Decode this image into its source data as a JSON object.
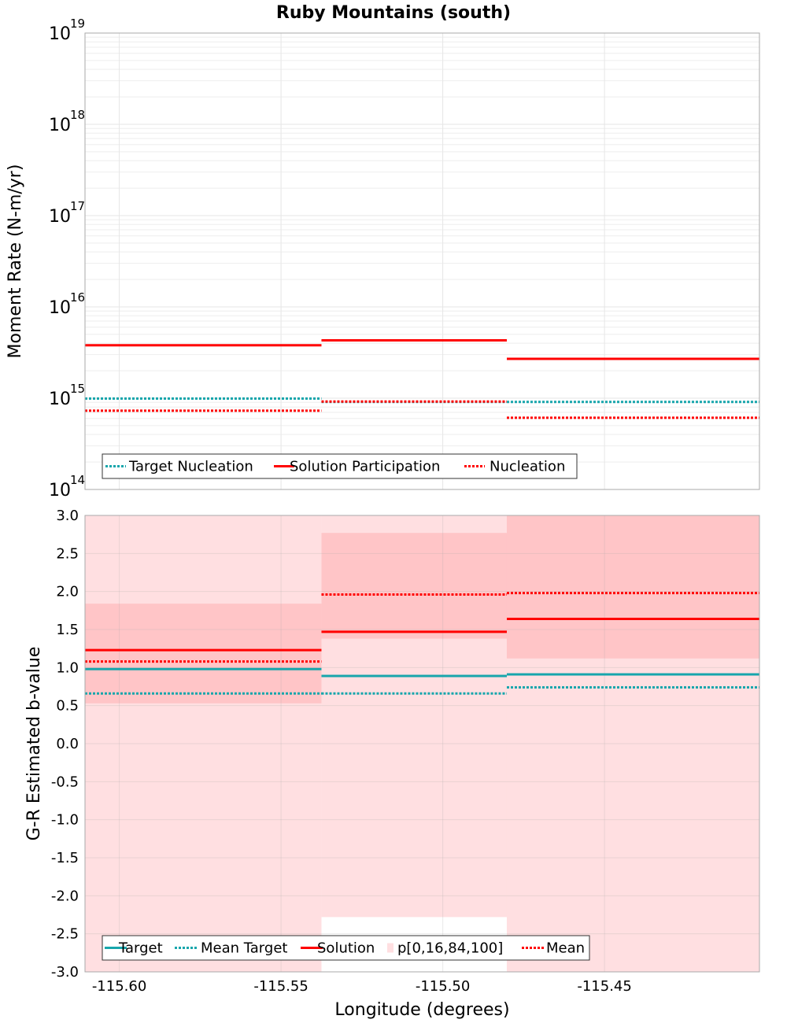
{
  "chart_data": [
    {
      "type": "line",
      "title": "Ruby Mountains (south)",
      "ylabel": "Moment Rate (N-m/yr)",
      "yscale": "log",
      "ylim": [
        100000000000000.0,
        1e+19
      ],
      "xlim": [
        -115.6106,
        -115.4021
      ],
      "yticks": [
        {
          "base": "10",
          "exp": "14"
        },
        {
          "base": "10",
          "exp": "15"
        },
        {
          "base": "10",
          "exp": "16"
        },
        {
          "base": "10",
          "exp": "17"
        },
        {
          "base": "10",
          "exp": "18"
        },
        {
          "base": "10",
          "exp": "19"
        }
      ],
      "grid": true,
      "legend_position": "bottom-left",
      "segments_x": [
        [
          -115.6106,
          -115.5375
        ],
        [
          -115.5375,
          -115.4802
        ],
        [
          -115.4802,
          -115.4021
        ]
      ],
      "series": [
        {
          "name": "Target Nucleation",
          "style": "dotted",
          "color": "#17a6ac",
          "values": [
            990000000000000.0,
            910000000000000.0,
            910000000000000.0
          ]
        },
        {
          "name": "Solution Participation",
          "style": "solid",
          "color": "#ff0000",
          "values": [
            3800000000000000.0,
            4300000000000000.0,
            2700000000000000.0
          ]
        },
        {
          "name": "Nucleation",
          "style": "dotted",
          "color": "#ff0000",
          "values": [
            730000000000000.0,
            920000000000000.0,
            610000000000000.0
          ]
        }
      ]
    },
    {
      "type": "line",
      "xlabel": "Longitude (degrees)",
      "ylabel": "G-R Estimated b-value",
      "ylim": [
        -3.0,
        3.0
      ],
      "xlim": [
        -115.6106,
        -115.4021
      ],
      "xticks": [
        "-115.60",
        "-115.55",
        "-115.50",
        "-115.45"
      ],
      "xtick_values": [
        -115.6,
        -115.55,
        -115.5,
        -115.45
      ],
      "yticks": [
        "3.0",
        "2.5",
        "2.0",
        "1.5",
        "1.0",
        "0.5",
        "0.0",
        "-0.5",
        "-1.0",
        "-1.5",
        "-2.0",
        "-2.5",
        "-3.0"
      ],
      "ytick_values": [
        3.0,
        2.5,
        2.0,
        1.5,
        1.0,
        0.5,
        0.0,
        -0.5,
        -1.0,
        -1.5,
        -2.0,
        -2.5,
        -3.0
      ],
      "grid": true,
      "legend_position": "bottom-left",
      "segments_x": [
        [
          -115.6106,
          -115.5375
        ],
        [
          -115.5375,
          -115.4802
        ],
        [
          -115.4802,
          -115.4021
        ]
      ],
      "bands": [
        {
          "name": "p[0,16,84,100]",
          "outer": [
            [
              -3.0,
              3.0
            ],
            [
              -2.28,
              3.0
            ],
            [
              -3.0,
              3.0
            ]
          ],
          "inner": [
            [
              0.53,
              1.84
            ],
            [
              1.38,
              2.77
            ],
            [
              1.12,
              3.0
            ]
          ]
        }
      ],
      "series": [
        {
          "name": "Target",
          "style": "solid",
          "color": "#17a6ac",
          "values": [
            0.98,
            0.89,
            0.91
          ]
        },
        {
          "name": "Mean Target",
          "style": "dotted",
          "color": "#17a6ac",
          "values": [
            0.66,
            0.66,
            0.74
          ]
        },
        {
          "name": "Solution",
          "style": "solid",
          "color": "#ff0000",
          "values": [
            1.23,
            1.47,
            1.64
          ]
        },
        {
          "name": "Mean",
          "style": "dotted",
          "color": "#ff0000",
          "values": [
            1.08,
            1.96,
            1.98
          ]
        }
      ]
    }
  ],
  "colors": {
    "target": "#17a6ac",
    "solution": "#ff0000",
    "band_outer": "#ffdfe1",
    "band_inner": "#ffc5c7",
    "grid": "#e6e6e6"
  }
}
